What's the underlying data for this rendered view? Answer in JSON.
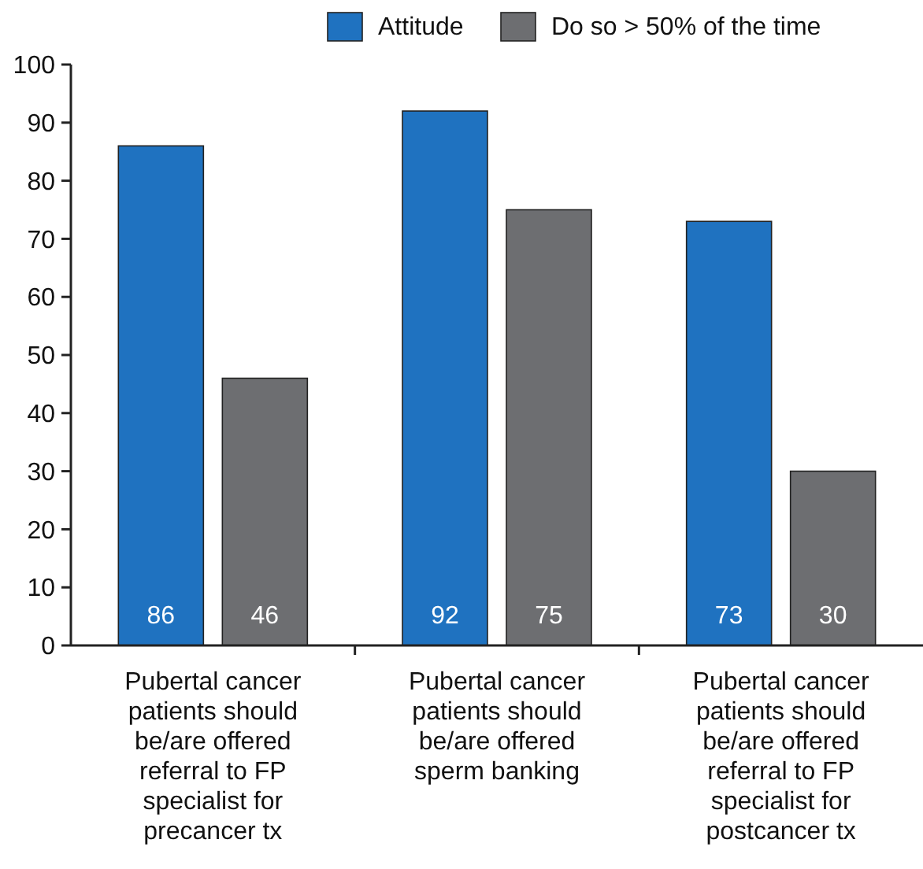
{
  "chart_data": {
    "type": "bar",
    "categories": [
      "Pubertal cancer patients should be/are offered referral to FP specialist for precancer tx",
      "Pubertal cancer patients should be/are offered sperm banking",
      "Pubertal cancer patients should be/are offered referral to FP specialist for postcancer tx"
    ],
    "series": [
      {
        "name": "Attitude",
        "color": "#1f72c0",
        "values": [
          86,
          92,
          73
        ]
      },
      {
        "name": "Do so > 50% of the time",
        "color": "#6d6e71",
        "values": [
          46,
          75,
          30
        ]
      }
    ],
    "ylim": [
      0,
      100
    ],
    "yticks": [
      0,
      10,
      20,
      30,
      40,
      50,
      60,
      70,
      80,
      90,
      100
    ],
    "data_labels": true,
    "legend": "top",
    "grid": false
  }
}
